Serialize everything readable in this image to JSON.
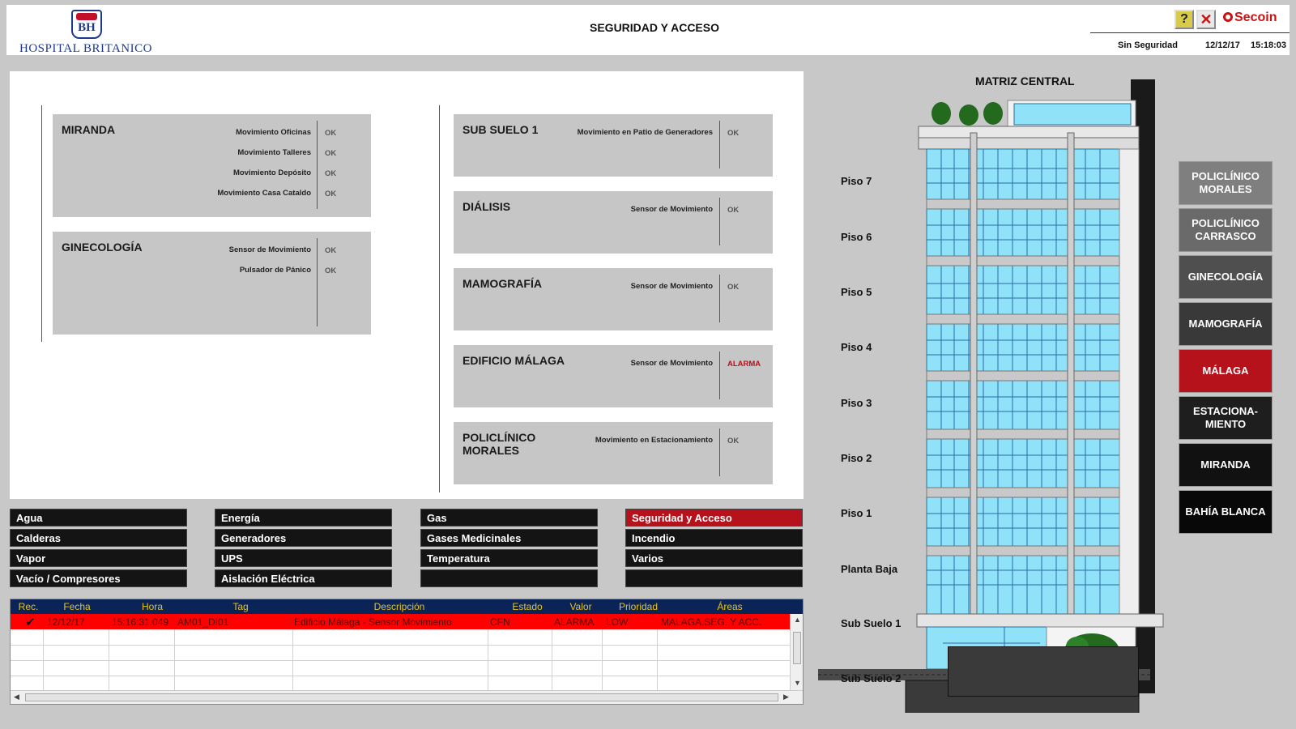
{
  "header": {
    "logo_initials": "BH",
    "logo_name": "HOSPITAL BRITANICO",
    "title": "SEGURIDAD Y ACCESO",
    "help_label": "?",
    "close_label": "✕",
    "brand": "Secoin",
    "security_status": "Sin Seguridad",
    "date": "12/12/17",
    "time": "15:18:03"
  },
  "zones_left": [
    {
      "title": "MIRANDA",
      "sensors": [
        {
          "name": "Movimiento Oficinas",
          "state": "OK"
        },
        {
          "name": "Movimiento Talleres",
          "state": "OK"
        },
        {
          "name": "Movimiento Depósito",
          "state": "OK"
        },
        {
          "name": "Movimiento Casa Cataldo",
          "state": "OK"
        }
      ]
    },
    {
      "title": "GINECOLOGÍA",
      "sensors": [
        {
          "name": "Sensor de Movimiento",
          "state": "OK"
        },
        {
          "name": "Pulsador de Pánico",
          "state": "OK"
        }
      ]
    }
  ],
  "zones_right": [
    {
      "title": "SUB SUELO 1",
      "sensors": [
        {
          "name": "Movimiento en Patio de Generadores",
          "state": "OK"
        }
      ]
    },
    {
      "title": "DIÁLISIS",
      "sensors": [
        {
          "name": "Sensor de Movimiento",
          "state": "OK"
        }
      ]
    },
    {
      "title": "MAMOGRAFÍA",
      "sensors": [
        {
          "name": "Sensor de Movimiento",
          "state": "OK"
        }
      ]
    },
    {
      "title": "EDIFICIO MÁLAGA",
      "sensors": [
        {
          "name": "Sensor de Movimiento",
          "state": "ALARMA"
        }
      ]
    },
    {
      "title": "POLICLÍNICO MORALES",
      "sensors": [
        {
          "name": "Movimiento en Estacionamiento",
          "state": "OK"
        }
      ]
    }
  ],
  "systems": [
    [
      "Agua",
      "Calderas",
      "Vapor",
      "Vacío / Compresores"
    ],
    [
      "Energía",
      "Generadores",
      "UPS",
      "Aislación Eléctrica"
    ],
    [
      "Gas",
      "Gases Medicinales",
      "Temperatura",
      ""
    ],
    [
      "Seguridad y Acceso",
      "Incendio",
      "Varios",
      ""
    ]
  ],
  "alarm_table": {
    "columns": [
      "Rec.",
      "Fecha",
      "Hora",
      "Tag",
      "Descripción",
      "Estado",
      "Valor",
      "Prioridad",
      "Áreas"
    ],
    "rows": [
      {
        "rec": "✔",
        "fecha": "12/12/17",
        "hora": "15:16:31.049",
        "tag": "AM01_DI01",
        "descripcion": "Edificio Málaga - Sensor Movimiento",
        "estado": "CFN",
        "valor": "ALARMA",
        "prioridad": "LOW",
        "areas": "MALAGA,SEG. Y ACC."
      }
    ]
  },
  "building": {
    "title": "MATRIZ CENTRAL",
    "floors": [
      "Piso 7",
      "Piso 6",
      "Piso 5",
      "Piso 4",
      "Piso 3",
      "Piso 2",
      "Piso 1",
      "Planta Baja",
      "Sub Suelo 1",
      "Sub Suelo 2"
    ]
  },
  "nav": [
    {
      "label": "POLICLÍNICO MORALES",
      "color": "#7f7f7f"
    },
    {
      "label": "POLICLÍNICO CARRASCO",
      "color": "#6a6a6a"
    },
    {
      "label": "GINECOLOGÍA",
      "color": "#4f4f4f"
    },
    {
      "label": "MAMOGRAFÍA",
      "color": "#393939"
    },
    {
      "label": "MÁLAGA",
      "color": "#b5121b"
    },
    {
      "label": "ESTACIONA- MIENTO",
      "color": "#1e1e1e"
    },
    {
      "label": "MIRANDA",
      "color": "#111111"
    },
    {
      "label": "BAHÍA BLANCA",
      "color": "#080808"
    }
  ],
  "colors": {
    "alarm": "#b5121b",
    "table_header": "#0a2458",
    "table_header_text": "#e8c21a",
    "alarm_row": "#ff0000",
    "glass": "#8fe2f7"
  }
}
